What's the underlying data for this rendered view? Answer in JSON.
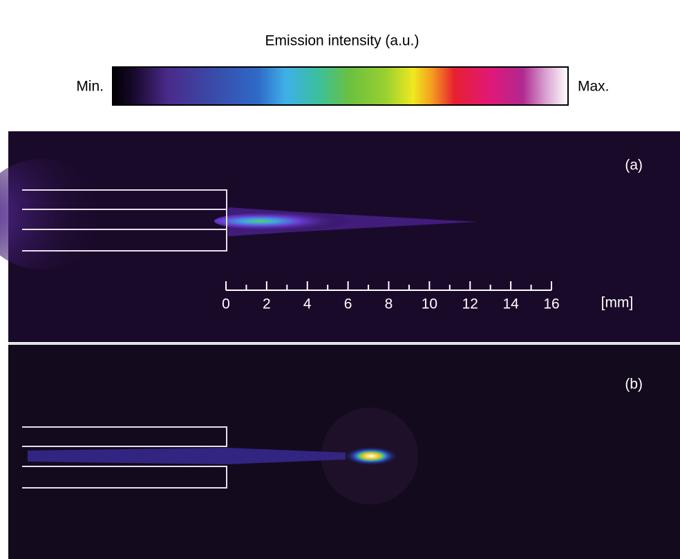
{
  "colorbar": {
    "title": "Emission intensity (a.u.)",
    "min_label": "Min.",
    "max_label": "Max."
  },
  "panels": [
    {
      "label": "(a)"
    },
    {
      "label": "(b)"
    }
  ],
  "scale": {
    "ticks": [
      0,
      2,
      4,
      6,
      8,
      10,
      12,
      14,
      16
    ],
    "unit": "[mm]"
  }
}
